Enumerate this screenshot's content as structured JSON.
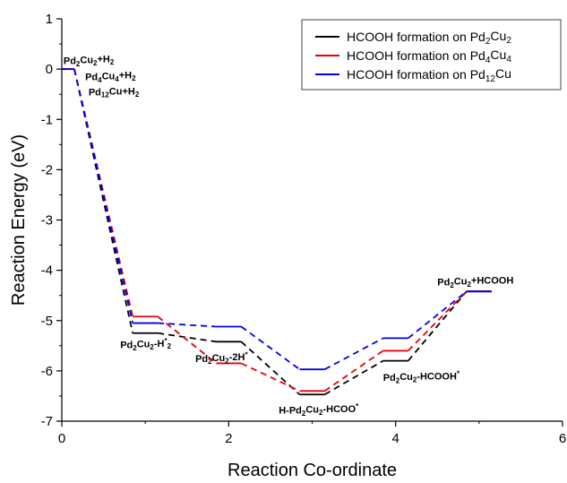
{
  "chart_data": {
    "type": "line",
    "title": "",
    "xlabel": "Reaction Co-ordinate",
    "ylabel": "Reaction Energy (eV)",
    "xlim": [
      0,
      6
    ],
    "ylim": [
      -7,
      1
    ],
    "x_ticks": [
      "0",
      "2",
      "4",
      "6"
    ],
    "y_ticks": [
      "1",
      "0",
      "-1",
      "-2",
      "-3",
      "-4",
      "-5",
      "-6",
      "-7"
    ],
    "grid": false,
    "legend_position": "top-right",
    "states": [
      {
        "x_start": 0.0,
        "x_end": 0.15
      },
      {
        "x_start": 0.85,
        "x_end": 1.15
      },
      {
        "x_start": 1.85,
        "x_end": 2.15
      },
      {
        "x_start": 2.85,
        "x_end": 3.15
      },
      {
        "x_start": 3.85,
        "x_end": 4.15
      },
      {
        "x_start": 4.85,
        "x_end": 5.15
      }
    ],
    "series": [
      {
        "name": "HCOOH formation on Pd<sub>2</sub>Cu<sub>2</sub>",
        "color": "#000000",
        "values": [
          0,
          -5.25,
          -5.42,
          -6.47,
          -5.8,
          -4.42
        ]
      },
      {
        "name": "HCOOH formation on Pd<sub>4</sub>Cu<sub>4</sub>",
        "color": "#e8000b",
        "values": [
          0,
          -4.92,
          -5.85,
          -6.4,
          -5.6,
          -4.42
        ]
      },
      {
        "name": "HCOOH formation on Pd<sub>12</sub>Cu",
        "color": "#0000ee",
        "values": [
          0,
          -5.05,
          -5.12,
          -5.97,
          -5.35,
          -4.42
        ]
      }
    ],
    "annotations": [
      {
        "text": "Pd<sub>2</sub>Cu<sub>2</sub>+H<sub>2</sub>",
        "x": 0.02,
        "y": 0.1
      },
      {
        "text": "Pd<sub>4</sub>Cu<sub>4</sub>+H<sub>2</sub>",
        "x": 0.28,
        "y": -0.22
      },
      {
        "text": "Pd<sub>12</sub>Cu+H<sub>2</sub>",
        "x": 0.32,
        "y": -0.52
      },
      {
        "text": "Pd<sub>2</sub>Cu<sub>2</sub>-H<sup>*</sup><sub>2</sub>",
        "x": 0.7,
        "y": -5.55
      },
      {
        "text": "Pd<sub>2</sub>Cu<sub>2</sub>-2H<sup>*</sup>",
        "x": 1.6,
        "y": -5.82
      },
      {
        "text": "H-Pd<sub>2</sub>Cu<sub>2</sub>-HCOO<sup>*</sup>",
        "x": 2.6,
        "y": -6.85
      },
      {
        "text": "Pd<sub>2</sub>Cu<sub>2</sub>-HCOOH<sup>*</sup>",
        "x": 3.85,
        "y": -6.2
      },
      {
        "text": "Pd<sub>2</sub>Cu<sub>2</sub>+HCOOH",
        "x": 4.5,
        "y": -4.3
      }
    ]
  }
}
